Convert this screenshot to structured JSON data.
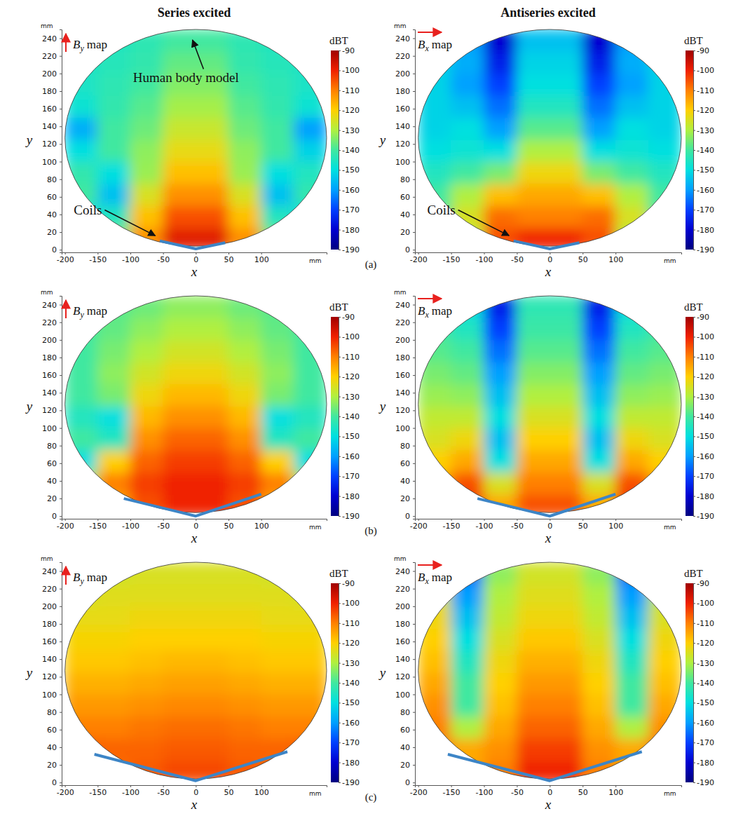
{
  "chart_data": [
    {
      "type": "heatmap",
      "title": "Series excited",
      "panel": "(a)",
      "map_label": {
        "symbol": "B",
        "subscript": "y",
        "text": "map"
      },
      "x_label": "x",
      "y_label": "y",
      "x_unit": "mm",
      "y_unit": "mm",
      "xlim": [
        -205,
        200
      ],
      "xticks": [
        -200,
        -150,
        -100,
        -50,
        0,
        50,
        100
      ],
      "ylim": [
        -3,
        250
      ],
      "yticks": [
        0,
        20,
        40,
        60,
        80,
        100,
        120,
        140,
        160,
        180,
        200,
        220,
        240
      ],
      "zlim": [
        -190,
        -90
      ],
      "zticks": [
        -90,
        -100,
        -110,
        -120,
        -130,
        -140,
        -150,
        -160,
        -170,
        -180,
        -190
      ],
      "z_label": "dBT",
      "body": {
        "cx": 0,
        "cy": 127,
        "rx": 200,
        "ry": 123
      },
      "coils": {
        "x": [
          -55,
          0,
          45
        ],
        "y": [
          10,
          1,
          8
        ]
      },
      "cells": {
        "x": [
          -175,
          -125,
          -75,
          -25,
          25,
          75,
          125,
          175
        ],
        "y": [
          12.5,
          37.5,
          62.5,
          87.5,
          112.5,
          137.5,
          162.5,
          187.5,
          212.5,
          237.5
        ],
        "values": [
          [
            null,
            -135,
            -112,
            -98,
            -98,
            -112,
            -135,
            null
          ],
          [
            -150,
            -145,
            -118,
            -105,
            -105,
            -118,
            -145,
            -150
          ],
          [
            -140,
            -155,
            -125,
            -112,
            -112,
            -125,
            -155,
            -142
          ],
          [
            -142,
            -150,
            -132,
            -118,
            -118,
            -132,
            -150,
            -145
          ],
          [
            -150,
            -140,
            -133,
            -123,
            -123,
            -133,
            -140,
            -152
          ],
          [
            -158,
            -140,
            -136,
            -127,
            -127,
            -136,
            -140,
            -160
          ],
          [
            -148,
            -142,
            -138,
            -131,
            -131,
            -138,
            -142,
            -148
          ],
          [
            -146,
            -143,
            -140,
            -134,
            -134,
            -140,
            -143,
            -146
          ],
          [
            -146,
            -144,
            -142,
            -137,
            -137,
            -142,
            -144,
            -146
          ],
          [
            null,
            -145,
            -143,
            -140,
            -140,
            -143,
            -145,
            null
          ]
        ]
      },
      "annotations": [
        {
          "text": "Human body model",
          "x": -15,
          "y": 190,
          "arrow_x": -5,
          "arrow_y": 238
        },
        {
          "text": "Coils",
          "x": -165,
          "y": 40,
          "arrow_x": -62,
          "arrow_y": 16
        }
      ]
    },
    {
      "type": "heatmap",
      "title": "Antiseries excited",
      "map_label": {
        "symbol": "B",
        "subscript": "x",
        "text": "map"
      },
      "x_label": "x",
      "y_label": "y",
      "x_unit": "mm",
      "y_unit": "mm",
      "xlim": [
        -205,
        200
      ],
      "xticks": [
        -200,
        -150,
        -100,
        -50,
        0,
        50,
        100
      ],
      "ylim": [
        -3,
        250
      ],
      "yticks": [
        0,
        20,
        40,
        60,
        80,
        100,
        120,
        140,
        160,
        180,
        200,
        220,
        240
      ],
      "zlim": [
        -190,
        -90
      ],
      "zticks": [
        -90,
        -100,
        -110,
        -120,
        -130,
        -140,
        -150,
        -160,
        -170,
        -180,
        -190
      ],
      "z_label": "dBT",
      "body": {
        "cx": 0,
        "cy": 127,
        "rx": 200,
        "ry": 123
      },
      "coils": {
        "x": [
          -55,
          0,
          45
        ],
        "y": [
          10,
          1,
          8
        ]
      },
      "cells": {
        "x": [
          -175,
          -125,
          -75,
          -25,
          25,
          75,
          125,
          175
        ],
        "y": [
          12.5,
          37.5,
          62.5,
          87.5,
          112.5,
          137.5,
          162.5,
          187.5,
          212.5,
          237.5
        ],
        "values": [
          [
            null,
            -130,
            -105,
            -100,
            -100,
            -105,
            -130,
            null
          ],
          [
            -140,
            -125,
            -108,
            -110,
            -110,
            -108,
            -125,
            -140
          ],
          [
            -140,
            -130,
            -118,
            -115,
            -115,
            -118,
            -130,
            -140
          ],
          [
            -145,
            -140,
            -135,
            -122,
            -122,
            -135,
            -140,
            -145
          ],
          [
            -150,
            -148,
            -150,
            -130,
            -130,
            -150,
            -148,
            -150
          ],
          [
            -152,
            -150,
            -160,
            -138,
            -138,
            -160,
            -150,
            -152
          ],
          [
            -152,
            -155,
            -165,
            -145,
            -145,
            -165,
            -155,
            -152
          ],
          [
            -152,
            -160,
            -170,
            -150,
            -150,
            -170,
            -160,
            -152
          ],
          [
            -152,
            -158,
            -175,
            -152,
            -152,
            -175,
            -158,
            -152
          ],
          [
            null,
            -160,
            -180,
            -155,
            -155,
            -180,
            -160,
            null
          ]
        ]
      },
      "annotations": [
        {
          "text": "Coils",
          "x": -165,
          "y": 40,
          "arrow_x": -62,
          "arrow_y": 16
        }
      ]
    },
    {
      "type": "heatmap",
      "panel": "(b)",
      "map_label": {
        "symbol": "B",
        "subscript": "y",
        "text": "map"
      },
      "x_label": "x",
      "y_label": "y",
      "x_unit": "mm",
      "y_unit": "mm",
      "xlim": [
        -205,
        200
      ],
      "xticks": [
        -200,
        -150,
        -100,
        -50,
        0,
        50,
        100
      ],
      "ylim": [
        -3,
        250
      ],
      "yticks": [
        0,
        20,
        40,
        60,
        80,
        100,
        120,
        140,
        160,
        180,
        200,
        220,
        240
      ],
      "zlim": [
        -190,
        -90
      ],
      "zticks": [
        -90,
        -100,
        -110,
        -120,
        -130,
        -140,
        -150,
        -160,
        -170,
        -180,
        -190
      ],
      "z_label": "dBT",
      "body": {
        "cx": 0,
        "cy": 127,
        "rx": 200,
        "ry": 123
      },
      "coils": {
        "x": [
          -110,
          0,
          100
        ],
        "y": [
          20,
          0,
          25
        ]
      },
      "cells": {
        "x": [
          -175,
          -125,
          -75,
          -25,
          25,
          75,
          125,
          175
        ],
        "y": [
          12.5,
          37.5,
          62.5,
          87.5,
          112.5,
          137.5,
          162.5,
          187.5,
          212.5,
          237.5
        ],
        "values": [
          [
            null,
            -115,
            -105,
            -100,
            -100,
            -105,
            -115,
            null
          ],
          [
            -130,
            -110,
            -103,
            -100,
            -100,
            -103,
            -110,
            -130
          ],
          [
            -150,
            -120,
            -107,
            -103,
            -103,
            -107,
            -120,
            -150
          ],
          [
            -140,
            -145,
            -112,
            -107,
            -107,
            -112,
            -145,
            -140
          ],
          [
            -145,
            -150,
            -117,
            -112,
            -112,
            -117,
            -150,
            -145
          ],
          [
            -140,
            -135,
            -122,
            -117,
            -117,
            -122,
            -135,
            -140
          ],
          [
            -140,
            -133,
            -126,
            -122,
            -122,
            -126,
            -133,
            -140
          ],
          [
            -140,
            -135,
            -130,
            -126,
            -126,
            -130,
            -135,
            -140
          ],
          [
            -140,
            -137,
            -133,
            -130,
            -130,
            -133,
            -137,
            -140
          ],
          [
            null,
            -138,
            -136,
            -133,
            -133,
            -136,
            -138,
            null
          ]
        ]
      }
    },
    {
      "type": "heatmap",
      "map_label": {
        "symbol": "B",
        "subscript": "x",
        "text": "map"
      },
      "x_label": "x",
      "y_label": "y",
      "x_unit": "mm",
      "y_unit": "mm",
      "xlim": [
        -205,
        200
      ],
      "xticks": [
        -200,
        -150,
        -100,
        -50,
        0,
        50,
        100
      ],
      "ylim": [
        -3,
        250
      ],
      "yticks": [
        0,
        20,
        40,
        60,
        80,
        100,
        120,
        140,
        160,
        180,
        200,
        220,
        240
      ],
      "zlim": [
        -190,
        -90
      ],
      "zticks": [
        -90,
        -100,
        -110,
        -120,
        -130,
        -140,
        -150,
        -160,
        -170,
        -180,
        -190
      ],
      "z_label": "dBT",
      "body": {
        "cx": 0,
        "cy": 127,
        "rx": 200,
        "ry": 123
      },
      "coils": {
        "x": [
          -110,
          0,
          100
        ],
        "y": [
          20,
          0,
          25
        ]
      },
      "cells": {
        "x": [
          -175,
          -125,
          -75,
          -25,
          25,
          75,
          125,
          175
        ],
        "y": [
          12.5,
          37.5,
          62.5,
          87.5,
          112.5,
          137.5,
          162.5,
          187.5,
          212.5,
          237.5
        ],
        "values": [
          [
            null,
            -100,
            -115,
            -105,
            -105,
            -115,
            -100,
            null
          ],
          [
            -115,
            -105,
            -125,
            -110,
            -110,
            -125,
            -105,
            -115
          ],
          [
            -120,
            -115,
            -150,
            -115,
            -115,
            -150,
            -115,
            -120
          ],
          [
            -125,
            -122,
            -155,
            -120,
            -120,
            -155,
            -122,
            -125
          ],
          [
            -128,
            -128,
            -150,
            -125,
            -125,
            -150,
            -128,
            -128
          ],
          [
            -132,
            -133,
            -155,
            -130,
            -130,
            -155,
            -133,
            -132
          ],
          [
            -135,
            -137,
            -160,
            -134,
            -134,
            -160,
            -137,
            -135
          ],
          [
            -138,
            -140,
            -165,
            -138,
            -138,
            -165,
            -140,
            -138
          ],
          [
            -140,
            -145,
            -170,
            -141,
            -141,
            -170,
            -145,
            -140
          ],
          [
            null,
            -150,
            -175,
            -143,
            -143,
            -175,
            -150,
            null
          ]
        ]
      }
    },
    {
      "type": "heatmap",
      "panel": "(c)",
      "map_label": {
        "symbol": "B",
        "subscript": "y",
        "text": "map"
      },
      "x_label": "x",
      "y_label": "y",
      "x_unit": "mm",
      "y_unit": "mm",
      "xlim": [
        -205,
        200
      ],
      "xticks": [
        -200,
        -150,
        -100,
        -50,
        0,
        50,
        100
      ],
      "ylim": [
        -3,
        250
      ],
      "yticks": [
        0,
        20,
        40,
        60,
        80,
        100,
        120,
        140,
        160,
        180,
        200,
        220,
        240
      ],
      "zlim": [
        -190,
        -90
      ],
      "zticks": [
        -90,
        -100,
        -110,
        -120,
        -130,
        -140,
        -150,
        -160,
        -170,
        -180,
        -190
      ],
      "z_label": "dBT",
      "body": {
        "cx": 0,
        "cy": 127,
        "rx": 200,
        "ry": 123
      },
      "coils": {
        "x": [
          -155,
          0,
          140
        ],
        "y": [
          32,
          2,
          35
        ]
      },
      "cells": {
        "x": [
          -175,
          -125,
          -75,
          -25,
          25,
          75,
          125,
          175
        ],
        "y": [
          12.5,
          37.5,
          62.5,
          87.5,
          112.5,
          137.5,
          162.5,
          187.5,
          212.5,
          237.5
        ],
        "values": [
          [
            null,
            -108,
            -106,
            -104,
            -104,
            -106,
            -108,
            null
          ],
          [
            -106,
            -107,
            -107,
            -106,
            -106,
            -107,
            -107,
            -106
          ],
          [
            -110,
            -110,
            -109,
            -108,
            -108,
            -109,
            -110,
            -110
          ],
          [
            -113,
            -113,
            -112,
            -111,
            -111,
            -112,
            -113,
            -113
          ],
          [
            -116,
            -116,
            -115,
            -114,
            -114,
            -115,
            -116,
            -116
          ],
          [
            -119,
            -119,
            -118,
            -117,
            -117,
            -118,
            -119,
            -119
          ],
          [
            -121,
            -121,
            -120,
            -120,
            -120,
            -120,
            -121,
            -121
          ],
          [
            -123,
            -123,
            -122,
            -122,
            -122,
            -122,
            -123,
            -123
          ],
          [
            -125,
            -124,
            -124,
            -124,
            -124,
            -124,
            -124,
            -125
          ],
          [
            null,
            -126,
            -125,
            -125,
            -125,
            -125,
            -126,
            null
          ]
        ]
      }
    },
    {
      "type": "heatmap",
      "map_label": {
        "symbol": "B",
        "subscript": "x",
        "text": "map"
      },
      "x_label": "x",
      "y_label": "y",
      "x_unit": "mm",
      "y_unit": "mm",
      "xlim": [
        -205,
        200
      ],
      "xticks": [
        -200,
        -150,
        -100,
        -50,
        0,
        50,
        100
      ],
      "ylim": [
        -3,
        250
      ],
      "yticks": [
        0,
        20,
        40,
        60,
        80,
        100,
        120,
        140,
        160,
        180,
        200,
        220,
        240
      ],
      "zlim": [
        -190,
        -90
      ],
      "zticks": [
        -90,
        -100,
        -110,
        -120,
        -130,
        -140,
        -150,
        -160,
        -170,
        -180,
        -190
      ],
      "z_label": "dBT",
      "body": {
        "cx": 0,
        "cy": 127,
        "rx": 200,
        "ry": 123
      },
      "coils": {
        "x": [
          -155,
          0,
          140
        ],
        "y": [
          32,
          2,
          35
        ]
      },
      "cells": {
        "x": [
          -175,
          -125,
          -75,
          -25,
          25,
          75,
          125,
          175
        ],
        "y": [
          12.5,
          37.5,
          62.5,
          87.5,
          112.5,
          137.5,
          162.5,
          187.5,
          212.5,
          237.5
        ],
        "values": [
          [
            null,
            -115,
            -110,
            -100,
            -100,
            -110,
            -115,
            null
          ],
          [
            -108,
            -115,
            -112,
            -103,
            -103,
            -112,
            -115,
            -108
          ],
          [
            -110,
            -130,
            -115,
            -107,
            -107,
            -115,
            -130,
            -112
          ],
          [
            -112,
            -140,
            -118,
            -110,
            -110,
            -118,
            -140,
            -115
          ],
          [
            -115,
            -140,
            -120,
            -113,
            -113,
            -120,
            -140,
            -118
          ],
          [
            -118,
            -145,
            -122,
            -116,
            -116,
            -122,
            -145,
            -120
          ],
          [
            -120,
            -150,
            -125,
            -119,
            -119,
            -125,
            -150,
            -122
          ],
          [
            -122,
            -155,
            -128,
            -122,
            -122,
            -128,
            -155,
            -125
          ],
          [
            -125,
            -160,
            -130,
            -124,
            -124,
            -130,
            -160,
            -128
          ],
          [
            null,
            -165,
            -133,
            -126,
            -126,
            -133,
            -165,
            null
          ]
        ]
      }
    }
  ]
}
